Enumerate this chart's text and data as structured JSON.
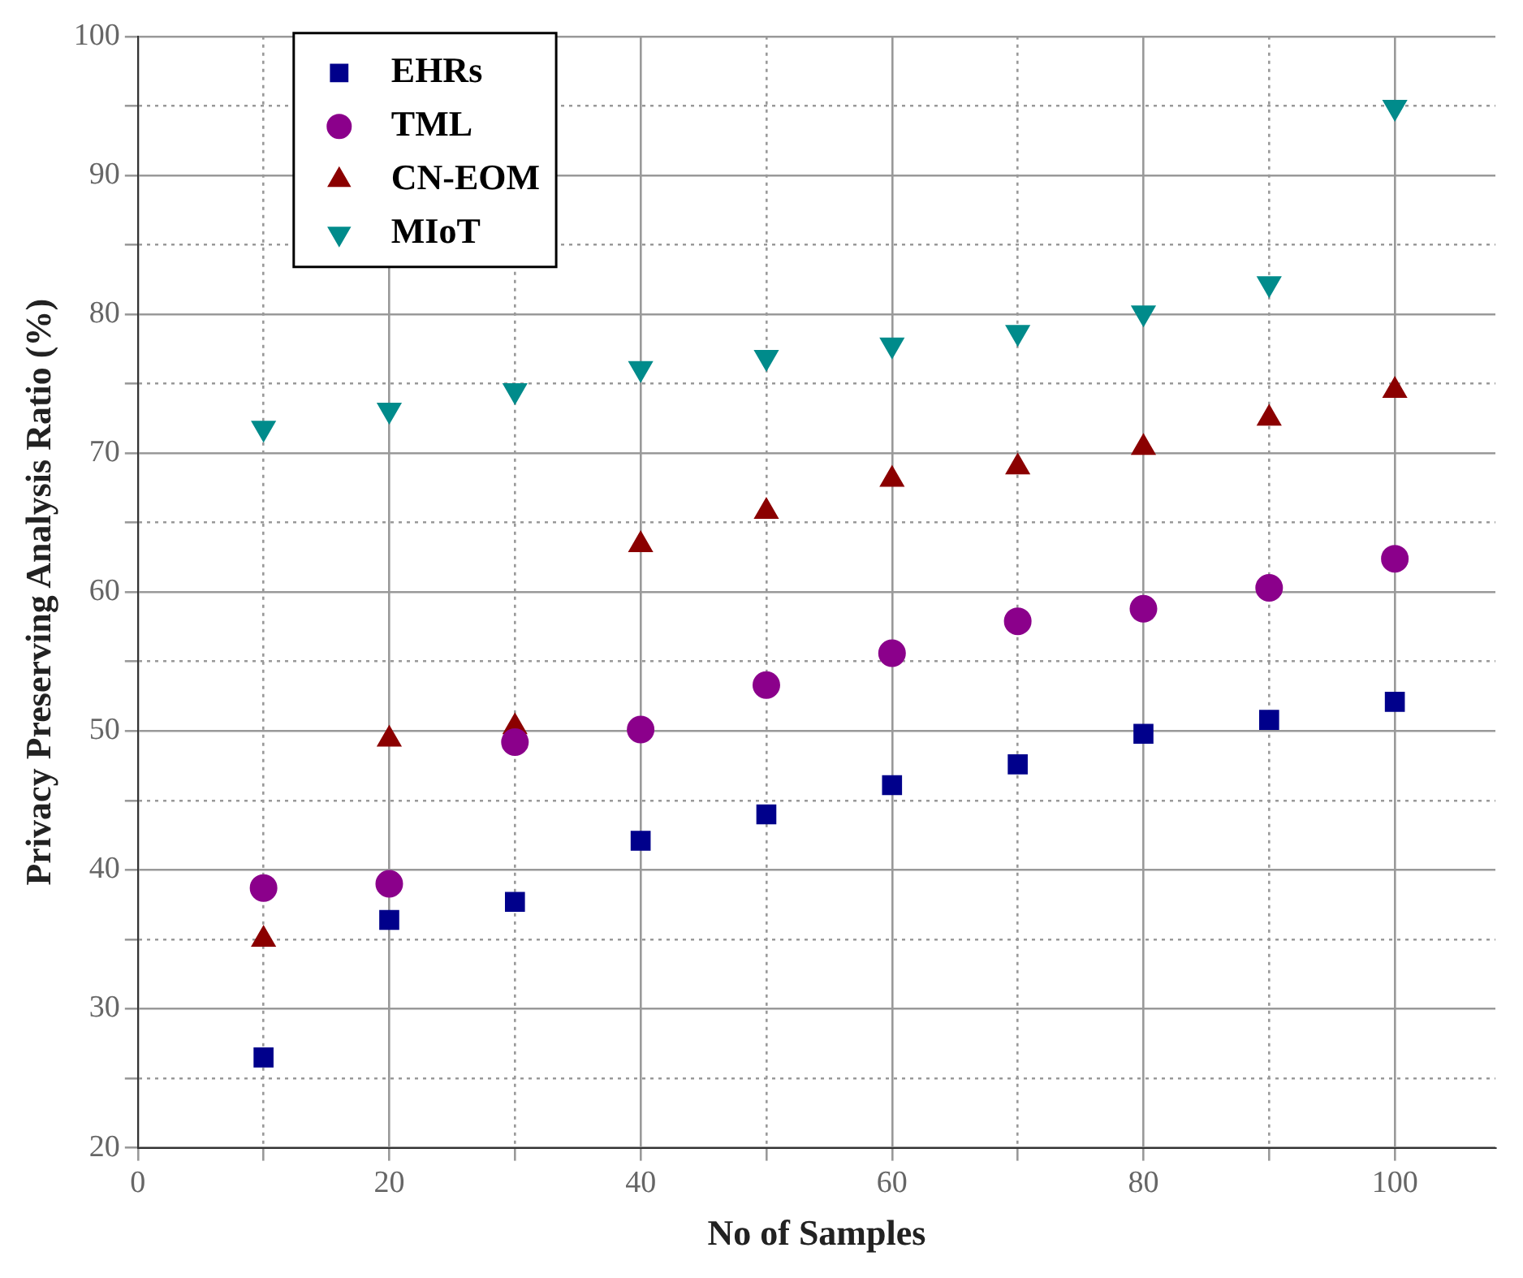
{
  "chart_data": {
    "type": "scatter",
    "xlabel": "No of Samples",
    "ylabel": "Privacy Preserving Analysis Ratio (%)",
    "xlim": [
      0,
      108
    ],
    "ylim": [
      20,
      100
    ],
    "xticks": [
      0,
      {
        "value": 10,
        "label": null
      },
      20,
      {
        "value": 30,
        "label": null
      },
      40,
      {
        "value": 50,
        "label": null
      },
      60,
      {
        "value": 70,
        "label": null
      },
      80,
      {
        "value": 90,
        "label": null
      },
      100
    ],
    "yticks": [
      20,
      {
        "value": 25,
        "label": null
      },
      30,
      {
        "value": 35,
        "label": null
      },
      40,
      {
        "value": 45,
        "label": null
      },
      50,
      {
        "value": 55,
        "label": null
      },
      60,
      {
        "value": 65,
        "label": null
      },
      70,
      {
        "value": 75,
        "label": null
      },
      80,
      {
        "value": 85,
        "label": null
      },
      90,
      {
        "value": 95,
        "label": null
      },
      100
    ],
    "grid": true,
    "legend": "top left",
    "x": [
      10,
      20,
      30,
      40,
      50,
      60,
      70,
      80,
      90,
      100
    ],
    "series": [
      {
        "name": "EHRs",
        "color": "#00008b",
        "marker": "square",
        "values": [
          26.5,
          36.4,
          37.7,
          42.1,
          44.0,
          46.1,
          47.6,
          49.8,
          50.8,
          52.1
        ]
      },
      {
        "name": "TML",
        "color": "#8b008b",
        "marker": "circle",
        "values": [
          38.7,
          39.0,
          49.2,
          50.1,
          53.3,
          55.6,
          57.9,
          58.8,
          60.3,
          62.4
        ]
      },
      {
        "name": "CN-EOM",
        "color": "#8b0000",
        "marker": "triangle",
        "values": [
          35.0,
          49.4,
          50.3,
          63.4,
          65.8,
          68.1,
          69.0,
          70.4,
          72.5,
          74.5
        ]
      },
      {
        "name": "MIoT",
        "color": "#008b8b",
        "marker": "triangle-down",
        "values": [
          71.8,
          73.1,
          74.5,
          76.1,
          76.9,
          77.8,
          78.7,
          80.1,
          82.2,
          94.9
        ]
      }
    ]
  }
}
